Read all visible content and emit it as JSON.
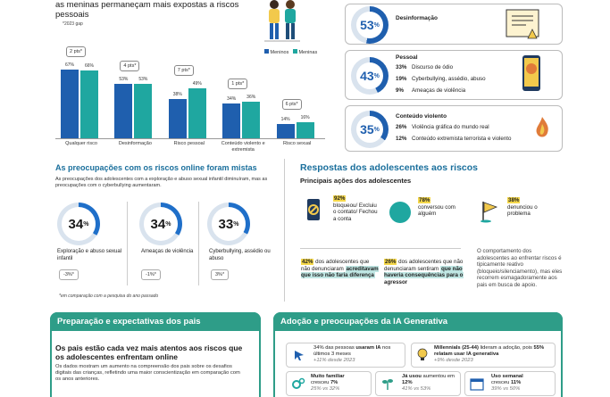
{
  "bars": {
    "title": "as meninas permaneçam mais expostas a riscos pessoais",
    "note": "*2023 gap",
    "legend_boys": "Meninos",
    "legend_girls": "Meninas"
  },
  "chart_data": {
    "type": "bar",
    "categories": [
      "Qualquer risco",
      "Desinformação",
      "Risco pessoal",
      "Conteúdo violento e extremista",
      "Risco sexual"
    ],
    "series": [
      {
        "name": "Meninos",
        "values": [
          67,
          53,
          38,
          34,
          14
        ]
      },
      {
        "name": "Meninas",
        "values": [
          66,
          53,
          49,
          36,
          16
        ]
      }
    ],
    "gaps": [
      "2 pts*",
      "4 pts*",
      "7 pts*",
      "1 pts*",
      "6 pts*"
    ],
    "value_labels_boys": [
      "67%",
      "53%",
      "38%",
      "34%",
      "14%"
    ],
    "value_labels_girls": [
      "66%",
      "53%",
      "49%",
      "36%",
      "16%"
    ],
    "ylim": [
      0,
      80
    ],
    "colors": {
      "boys": "#1f5fae",
      "girls": "#1fa7a0"
    }
  },
  "risks": {
    "disinfo": {
      "pct": "53",
      "title": "Desinformação",
      "value": 53
    },
    "personal": {
      "pct": "43",
      "title": "Pessoal",
      "value": 43,
      "rows": [
        {
          "pct": "33%",
          "label": "Discurso de ódio"
        },
        {
          "pct": "19%",
          "label": "Cyberbullying, assédio, abuso"
        },
        {
          "pct": "9%",
          "label": "Ameaças de violência"
        }
      ]
    },
    "violent": {
      "pct": "35",
      "title": "Conteúdo violento",
      "value": 35,
      "rows": [
        {
          "pct": "26%",
          "label": "Violência gráfica do mundo real"
        },
        {
          "pct": "12%",
          "label": "Conteúdo extremista terrorista e violento"
        }
      ]
    }
  },
  "concerns": {
    "title": "As preocupações com os riscos online foram mistas",
    "desc": "As preocupações dos adolescentes com a exploração e abuso sexual infantil diminuíram, mas as preocupações com o cyberbullying aumentaram.",
    "items": [
      {
        "pct": "34",
        "value": 34,
        "label": "Exploração e abuso sexual infantil",
        "change": "-3%*"
      },
      {
        "pct": "34",
        "value": 34,
        "label": "Ameaças de violência",
        "change": "-1%*"
      },
      {
        "pct": "33",
        "value": 33,
        "label": "Cyberbullying, assédio ou abuso",
        "change": "3%*"
      }
    ],
    "footnote": "*em comparação com a pesquisa do ano passado"
  },
  "responses": {
    "title": "Respostas dos adolescentes aos riscos",
    "subtitle": "Principais ações dos adolescentes",
    "actions": [
      {
        "pct": "92%",
        "label": "bloqueou/ Excluiu o contato/ Fechou a conta"
      },
      {
        "pct": "78%",
        "label": "conversou com alguém"
      },
      {
        "pct": "38%",
        "label": "denunciou o problema"
      }
    ],
    "stat1_pct": "42%",
    "stat1_a": "dos adolescentes que não denunciaram",
    "stat1_b": "acreditavam que isso não faria diferença",
    "stat2_pct": "26%",
    "stat2_a": "dos adolescentes que não denunciaram sentiram",
    "stat2_b": "que não haveria consequências para o",
    "stat2_c": "agressor",
    "note": "O comportamento dos adolescentes ao enfrentar riscos é tipicamente reativo (bloqueio/silenciamento), mas eles recorrem esmagadoramente aos pais em busca de apoio."
  },
  "parents": {
    "header": "Preparação e expectativas dos pais",
    "lead": "Os pais estão cada vez mais atentos aos riscos que os adolescentes enfrentam online",
    "body": "Os dados mostram um aumento na compreensão dos pais sobre os desafios digitais das crianças, refletindo uma maior conscientização em comparação com os anos anteriores."
  },
  "ai": {
    "header": "Adoção e preocupações da IA Generativa",
    "box1_a": "34% das pessoas",
    "box1_b": "usaram IA",
    "box1_c": "nos últimos 3 meses",
    "box1_sub": "+11% desde 2023",
    "box2_a": "Millennials (25-44)",
    "box2_b": "lideram a adoção, pois",
    "box2_c": "55% relatam",
    "box2_d": "usar IA generativa",
    "box2_sub": "+9% desde 2023",
    "box3_a": "Muito familiar",
    "box3_b": "cresceu",
    "box3_c": "7%",
    "box3_sub": "25% vs 32%",
    "box4_a": "Já usou",
    "box4_b": "aumentou em",
    "box4_c": "12%",
    "box4_sub": "41% vs 53%",
    "box5_a": "Uso semanal",
    "box5_b": "cresceu",
    "box5_c": "11%",
    "box5_sub": "39% vs 50%"
  }
}
